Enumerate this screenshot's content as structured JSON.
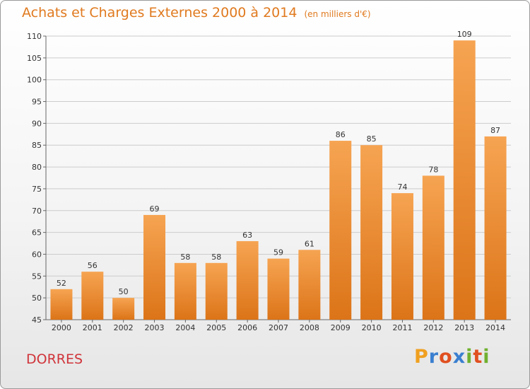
{
  "title": "Achats et Charges Externes 2000 à 2014",
  "subtitle": "(en milliers d'€)",
  "place": "DORRES",
  "logo": {
    "letters": [
      "P",
      "r",
      "o",
      "x",
      "i",
      "t",
      "i"
    ],
    "colors": [
      "#f0a020",
      "#3a7fd0",
      "#e05020",
      "#3a7fd0",
      "#70b030",
      "#e05020",
      "#70b030"
    ]
  },
  "chart_data": {
    "type": "bar",
    "categories": [
      "2000",
      "2001",
      "2002",
      "2003",
      "2004",
      "2005",
      "2006",
      "2007",
      "2008",
      "2009",
      "2010",
      "2011",
      "2012",
      "2013",
      "2014"
    ],
    "values": [
      52,
      56,
      50,
      69,
      58,
      58,
      63,
      59,
      61,
      86,
      85,
      74,
      78,
      109,
      87
    ],
    "ylim": [
      45,
      110
    ],
    "yticks": [
      45,
      50,
      55,
      60,
      65,
      70,
      75,
      80,
      85,
      90,
      95,
      100,
      105,
      110
    ],
    "grid": true,
    "bar_color_top": "#f6a452",
    "bar_color_bottom": "#dc7418",
    "grid_color": "#cccccc"
  }
}
